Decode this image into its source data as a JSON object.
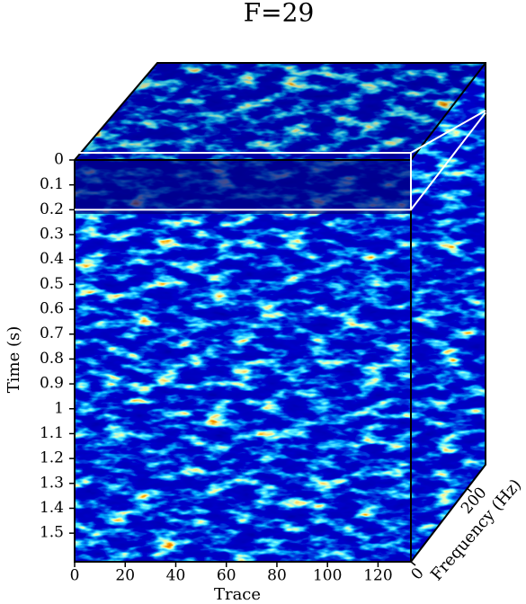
{
  "chart_data": {
    "type": "cube",
    "title": "F=29",
    "ylabel": "Time (s)",
    "xlabel": "Trace",
    "zlabel": "Frequency (Hz)",
    "ylim": [
      0,
      1.615
    ],
    "yticks": [
      0,
      0.1,
      0.2,
      0.3,
      0.4,
      0.5,
      0.6,
      0.7,
      0.8,
      0.9,
      1,
      1.1,
      1.2,
      1.3,
      1.4,
      1.5
    ],
    "xlim": [
      0,
      133
    ],
    "xticks": [
      0,
      20,
      40,
      60,
      80,
      100,
      120
    ],
    "zlim": [
      0,
      265
    ],
    "zticks": [
      0,
      200
    ],
    "slice_time": 0.2
  }
}
